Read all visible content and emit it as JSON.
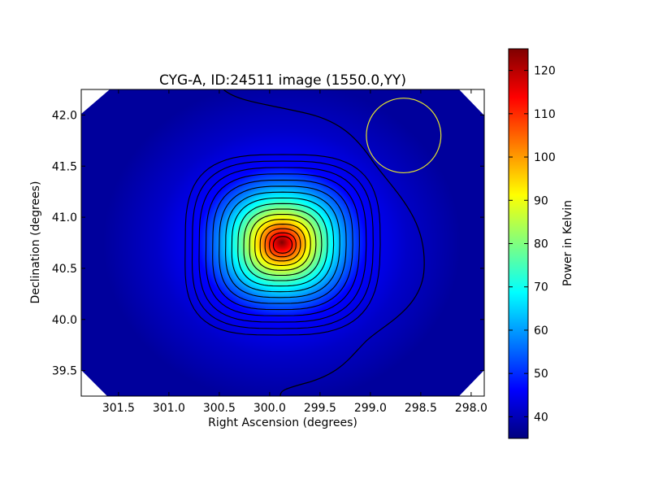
{
  "chart_data": {
    "type": "heatmap",
    "title": "CYG-A, ID:24511 image (1550.0,YY)",
    "xlabel": "Right Ascension (degrees)",
    "ylabel": "Declination (degrees)",
    "xlim": [
      301.87,
      297.87
    ],
    "ylim": [
      39.25,
      42.25
    ],
    "x_ticks": [
      "301.5",
      "301.0",
      "300.5",
      "300.0",
      "299.5",
      "299.0",
      "298.5",
      "298.0"
    ],
    "x_tick_values": [
      301.5,
      301.0,
      300.5,
      300.0,
      299.5,
      299.0,
      298.5,
      298.0
    ],
    "y_ticks": [
      "39.5",
      "40.0",
      "40.5",
      "41.0",
      "41.5",
      "42.0"
    ],
    "y_tick_values": [
      39.5,
      40.0,
      40.5,
      41.0,
      41.5,
      42.0
    ],
    "colormap": "jet",
    "colorbar": {
      "label": "Power in Kelvin",
      "range": [
        35,
        125
      ],
      "ticks": [
        "40",
        "50",
        "60",
        "70",
        "80",
        "90",
        "100",
        "110",
        "120"
      ],
      "tick_values": [
        40,
        50,
        60,
        70,
        80,
        90,
        100,
        110,
        120
      ]
    },
    "source": {
      "ra": 299.87,
      "dec": 40.73,
      "peak": 125,
      "background": 37
    },
    "beam_circle": {
      "ra": 298.67,
      "dec": 41.8,
      "radius_deg": 0.37,
      "color": "#e6e62e"
    },
    "contours": {
      "count": 16,
      "color": "#000000"
    }
  }
}
